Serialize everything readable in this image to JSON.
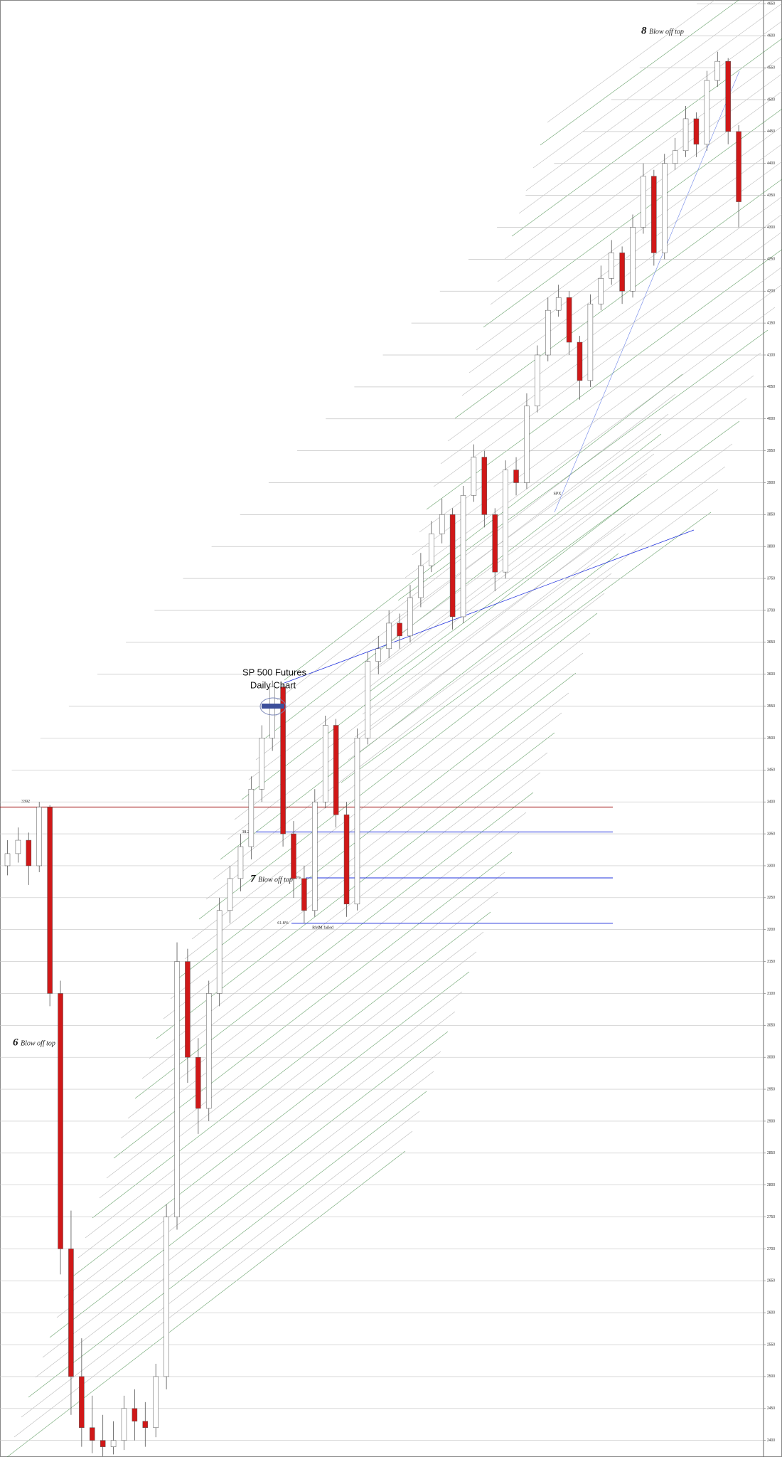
{
  "chart_data": {
    "type": "candlestick",
    "title": "SP 500 Futures",
    "subtitle": "Daily Chart",
    "ylim": [
      2374,
      4656
    ],
    "yticks": [
      2400,
      2450,
      2500,
      2550,
      2600,
      2650,
      2700,
      2750,
      2800,
      2850,
      2900,
      2950,
      3000,
      3050,
      3100,
      3150,
      3200,
      3250,
      3300,
      3350,
      3400,
      3450,
      3500,
      3550,
      3600,
      3650,
      3700,
      3750,
      3800,
      3850,
      3900,
      3950,
      4000,
      4050,
      4100,
      4150,
      4200,
      4250,
      4300,
      4350,
      4400,
      4450,
      4500,
      4550,
      4600,
      4650
    ],
    "grid": true,
    "up_color": "#ffffff",
    "down_color": "#d01818",
    "open": [
      3300,
      3319,
      3340,
      3300,
      3392,
      3100,
      2700,
      2500,
      2420,
      2400,
      2390,
      2400,
      2450,
      2430,
      2420,
      2500,
      2750,
      3150,
      3000,
      2920,
      3100,
      3230,
      3280,
      3330,
      3420,
      3500,
      3580,
      3350,
      3280,
      3230,
      3400,
      3520,
      3380,
      3240,
      3500,
      3620,
      3640,
      3680,
      3660,
      3720,
      3770,
      3820,
      3850,
      3690,
      3880,
      3940,
      3850,
      3760,
      3920,
      3900,
      4020,
      4100,
      4170,
      4190,
      4120,
      4060,
      4180,
      4220,
      4260,
      4200,
      4300,
      4380,
      4260,
      4400,
      4420,
      4470,
      4430,
      4530,
      4560,
      4450
    ],
    "high": [
      3340,
      3360,
      3352,
      3400,
      3395,
      3120,
      2760,
      2560,
      2470,
      2440,
      2430,
      2470,
      2480,
      2460,
      2520,
      2770,
      3180,
      3170,
      3030,
      3120,
      3250,
      3300,
      3350,
      3440,
      3520,
      3590,
      3585,
      3370,
      3300,
      3420,
      3535,
      3530,
      3400,
      3515,
      3635,
      3660,
      3700,
      3695,
      3740,
      3790,
      3840,
      3875,
      3860,
      3895,
      3960,
      3950,
      3860,
      3935,
      3940,
      4040,
      4115,
      4190,
      4210,
      4200,
      4130,
      4195,
      4240,
      4280,
      4270,
      4320,
      4400,
      4390,
      4415,
      4440,
      4490,
      4480,
      4545,
      4575,
      4565,
      4460
    ],
    "low": [
      3285,
      3305,
      3270,
      3290,
      3080,
      2660,
      2440,
      2390,
      2380,
      2375,
      2378,
      2385,
      2400,
      2390,
      2405,
      2480,
      2730,
      2960,
      2880,
      2900,
      3080,
      3210,
      3260,
      3310,
      3400,
      3480,
      3330,
      3250,
      3210,
      3220,
      3390,
      3360,
      3220,
      3230,
      3490,
      3600,
      3625,
      3640,
      3650,
      3705,
      3760,
      3805,
      3670,
      3680,
      3870,
      3830,
      3730,
      3750,
      3880,
      3890,
      4010,
      4090,
      4160,
      4100,
      4030,
      4050,
      4170,
      4210,
      4180,
      4190,
      4290,
      4240,
      4250,
      4390,
      4410,
      4410,
      4420,
      4520,
      4430,
      4300
    ],
    "close": [
      3319,
      3340,
      3300,
      3392,
      3100,
      2700,
      2500,
      2420,
      2400,
      2390,
      2400,
      2450,
      2430,
      2420,
      2500,
      2750,
      3150,
      3000,
      2920,
      3100,
      3230,
      3280,
      3330,
      3420,
      3500,
      3580,
      3350,
      3280,
      3230,
      3400,
      3520,
      3380,
      3240,
      3500,
      3620,
      3640,
      3680,
      3660,
      3720,
      3770,
      3820,
      3850,
      3690,
      3880,
      3940,
      3850,
      3760,
      3920,
      3900,
      4020,
      4100,
      4170,
      4190,
      4120,
      4060,
      4180,
      4220,
      4260,
      4200,
      4300,
      4380,
      4260,
      4400,
      4420,
      4470,
      4430,
      4530,
      4560,
      4450,
      4340
    ],
    "levels": [
      {
        "label": "3392",
        "value": 3392,
        "color": "#a01010"
      },
      {
        "label": "38.2%",
        "value": 3353,
        "color": "#2233dd"
      },
      {
        "label": "50%",
        "value": 3281,
        "color": "#2233dd"
      },
      {
        "label": "61.8%",
        "value": 3210,
        "color": "#2233dd"
      }
    ],
    "annotations": [
      {
        "number": "8",
        "text": "Blow off top"
      },
      {
        "number": "7",
        "text": "Blow off top"
      },
      {
        "number": "6",
        "text": "Blow off top"
      }
    ],
    "notes": [
      "RMM failed",
      "SPX"
    ]
  }
}
